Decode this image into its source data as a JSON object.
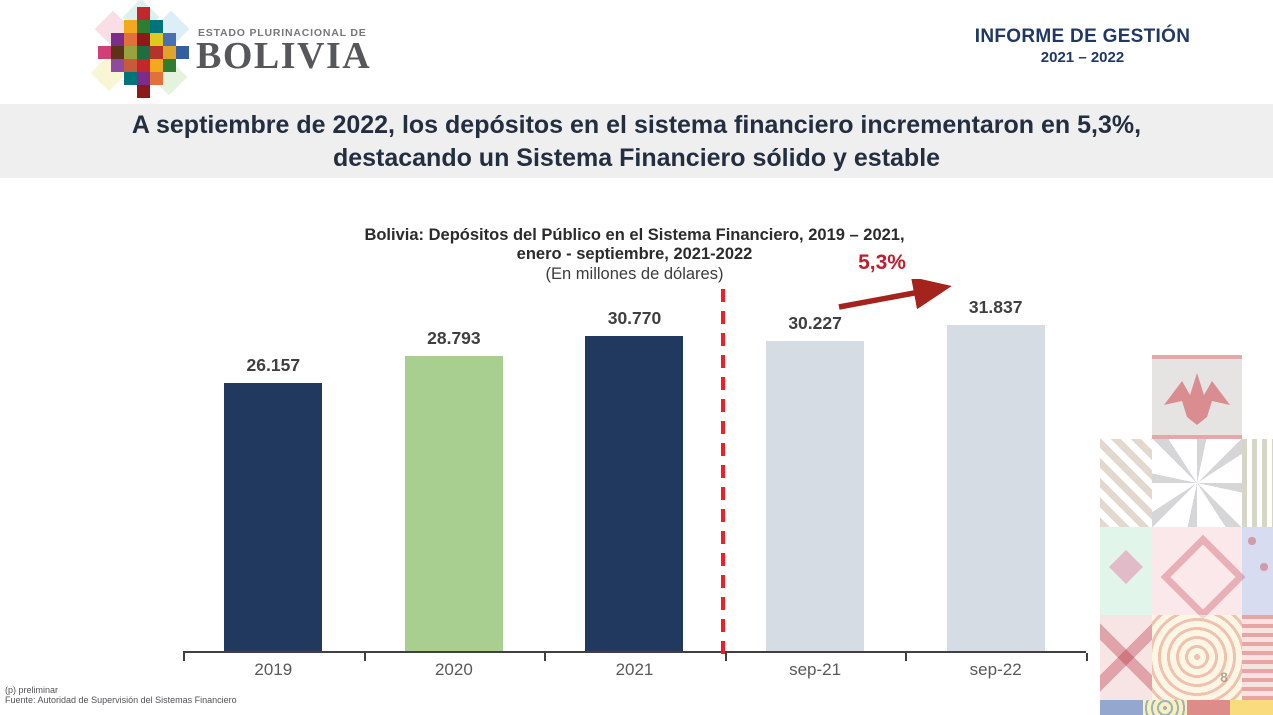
{
  "header": {
    "logo": {
      "caption_top": "ESTADO PLURINACIONAL DE",
      "caption_main": "BOLIVIA",
      "tile_colors": [
        "#c1272d",
        "#f4a81d",
        "#2e7d32",
        "#00747a",
        "#7b2d8b",
        "#e2703a",
        "#8b1a1a",
        "#ddca1b",
        "#4a6fb3",
        "#d23f77",
        "#5c3317",
        "#9aa13f",
        "#1d6f42",
        "#b5332a",
        "#e0a32e",
        "#355e9c",
        "#8e4a9e",
        "#c75b39"
      ],
      "diamond_colors": [
        "#f4c2cf",
        "#bfe0ef",
        "#f6ecb0",
        "#cfe8c2",
        "#bfe4de"
      ]
    },
    "report_title": "INFORME DE GESTIÓN",
    "report_period": "2021 – 2022"
  },
  "banner": {
    "line1": "A septiembre de 2022, los depósitos en el sistema financiero incrementaron en 5,3%,",
    "line2": "destacando un Sistema Financiero sólido y estable"
  },
  "chart_data": {
    "type": "bar",
    "title_line1": "Bolivia: Depósitos del Público en el Sistema Financiero, 2019 – 2021,",
    "title_line2": "enero - septiembre, 2021-2022",
    "subtitle": "(En millones de dólares)",
    "categories": [
      "2019",
      "2020",
      "2021",
      "sep-21",
      "sep-22"
    ],
    "values": [
      26157,
      28793,
      30770,
      30227,
      31837
    ],
    "value_labels": [
      "26.157",
      "28.793",
      "30.770",
      "30.227",
      "31.837"
    ],
    "bar_colors": [
      "#22395f",
      "#a9cf90",
      "#22395f",
      "#d6dce4",
      "#d6dce4"
    ],
    "ylim": [
      0,
      34300
    ],
    "grid": false,
    "legend": false,
    "annotation": {
      "label": "5,3%",
      "color": "#be1e2d",
      "arrow_color": "#a5231d",
      "meaning": "growth from sep-21 to sep-22"
    },
    "divider": {
      "style": "dashed",
      "color": "#ec2027",
      "between": [
        "2021",
        "sep-21"
      ]
    }
  },
  "footer": {
    "note1": "(p) preliminar",
    "note2": "Fuente: Autoridad de Supervisión del Sistemas Financiero",
    "page_number": "8"
  },
  "decor": {
    "tiles": [
      "t-zigzag",
      "t-star",
      "t-stripes",
      "t-mint",
      "t-diamond",
      "t-bluedots",
      "t-redx",
      "t-spiral",
      "t-meander",
      "t-strip1",
      "t-strip2",
      "t-strip3",
      "t-strip4"
    ]
  }
}
